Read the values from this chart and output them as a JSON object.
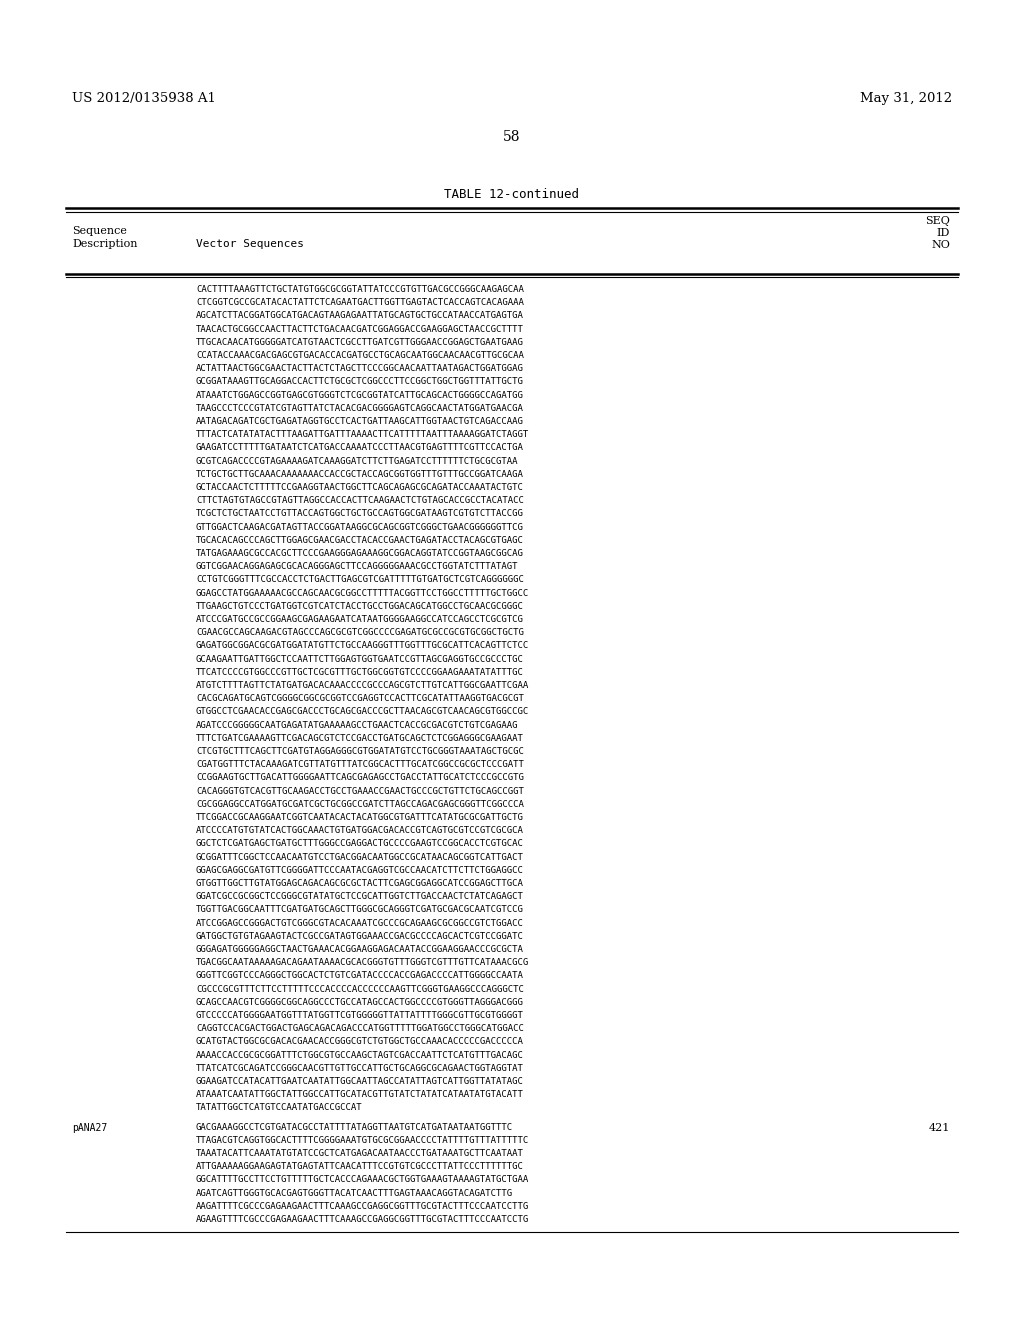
{
  "header_left": "US 2012/0135938 A1",
  "header_right": "May 31, 2012",
  "page_number": "58",
  "table_title": "TABLE 12-continued",
  "background_color": "#ffffff",
  "text_color": "#000000",
  "sequence_lines": [
    "CACTTTTAAAGTTCTGCTATGTGGCGCGGTATTATCCCGTGTTGACGCCGGGCAAGAGCAA",
    "CTCGGTCGCCGCATACACTATTCTCAGAATGACTTGGTTGAGTACTCACCAGTCACAGAAA",
    "AGCATCTTACGGATGGCATGACAGTAAGAGAATTATGCAGTGCTGCCATAACCATGAGTGA",
    "TAACACTGCGGCCAACTTACTTCTGACAACGATCGGAGGACCGAAGGAGCTAACCGCTTTT",
    "TTGCACAACATGGGGGATCATGTAACTCGCCTTGATCGTTGGGAACCGGAGCTGAATGAAG",
    "CCATACCAAACGACGAGCGTGACACCACGATGCCTGCAGCAATGGCAACAACGTTGCGCAA",
    "ACTATTAACTGGCGAACTACTTACTCTAGCTTCCCGGCAACAATTAATAGACTGGATGGAG",
    "GCGGATAAAGTTGCAGGACCACTTCTGCGCTCGGCCCTTCCGGCTGGCTGGTTTATTGCTG",
    "ATAAATCTGGAGCCGGTGAGCGTGGGTCTCGCGGTATCATTGCAGCACTGGGGCCAGATGG",
    "TAAGCCCTCCCGTATCGTAGTTATCTACACGACGGGGAGTCAGGCAACTATGGATGAACGA",
    "AATAGACAGATCGCTGAGATAGGTGCCTCACTGATTAAGCATTGGTAACTGTCAGACCAAG",
    "TTTACTCATATATACTTTAAGATTGATTTAAAACTTCATTTTTAATTTAAAAGGATCTAGGT",
    "GAAGATCCTTTTTGATAATCTCATGACCAAAATCCCTTAACGTGAGTTTTCGTTCCACTGA",
    "GCGTCAGACCCCGTAGAAAAGATCAAAGGATCTTCTTGAGATCCTTTTTTCTGCGCGTAA",
    "TCTGCTGCTTGCAAACAAAAAAACCACCGCTACCAGCGGTGGTTTGTTTGCCGGATCAAGA",
    "GCTACCAACTCTTTTTCCGAAGGTAACTGGCTTCAGCAGAGCGCAGATACCAAATACTGTC",
    "CTTCTAGTGTAGCCGTAGTTAGGCCACCACTTCAAGAACTCTGTAGCACCGCCTACATACC",
    "TCGCTCTGCTAATCCTGTTACCAGTGGCTGCTGCCAGTGGCGATAAGTCGTGTCTTACCGG",
    "GTTGGACTCAAGACGATAGTTACCGGATAAGGCGCAGCGGTCGGGCTGAACGGGGGGTTCG",
    "TGCACACAGCCCAGCTTGGAGCGAACGACCTACACCGAACTGAGATACCTACAGCGTGAGC",
    "TATGAGAAAGCGCCACGCTTCCCGAAGGGAGAAAGGCGGACAGGTATCCGGTAAGCGGCAG",
    "GGTCGGAACAGGAGAGCGCACAGGGAGCTTCCAGGGGGAAACGCCTGGTATCTTTATAGT",
    "CCTGTCGGGTTTCGCCACCTCTGACTTGAGCGTCGATTTTTGTGATGCTCGTCAGGGGGGC",
    "GGAGCCTATGGAAAAACGCCAGCAACGCGGCCTTTTTACGGTTCCTGGCCTTTTTGCTGGCC",
    "TTGAAGCTGTCCCTGATGGTCGTCATCTACCTGCCTGGACAGCATGGCCTGCAACGCGGGC",
    "ATCCCGATGCCGCCGGAAGCGAGAAGAATCATAATGGGGAAGGCCATCCAGCCTCGCGTCG",
    "CGAACGCCAGCAAGACGTAGCCCAGCGCGTCGGCCCCGAGATGCGCCGCGTGCGGCTGCTG",
    "GAGATGGCGGACGCGATGGATATGTTCTGCCAAGGGTTTGGTTTGCGCATTCACAGTTCTCC",
    "GCAAGAATTGATTGGCTCCAATTCTTGGAGTGGTGAATCCGTTAGCGAGGTGCCGCCCTGC",
    "TTCATCCCCGTGGCCCGTTGCTCGCGTTTGCTGGCGGTGTCCCCGGAAGAAATATATTTGC",
    "ATGTCTTTTAGTTCTATGATGACACAAACCCCGCCCAGCGTCTTGTCATTGGCGAATTCGAA",
    "CACGCAGATGCAGTCGGGGCGGCGCGGTCCGAGGTCCACTTCGCATATTAAGGTGACGCGT",
    "GTGGCCTCGAACACCGAGCGACCCTGCAGCGACCCGCTTAACAGCGTCAACAGCGTGGCCGC",
    "AGATCCCGGGGGCAATGAGATATGAAAAAGCCTGAACTCACCGCGACGTCTGTCGAGAAG",
    "TTTCTGATCGAAAAGTTCGACAGCGTCTCCGACCTGATGCAGCTCTCGGAGGGCGAAGAAT",
    "CTCGTGCTTTCAGCTTCGATGTAGGAGGGCGTGGATATGTCCTGCGGGTAAATAGCTGCGC",
    "CGATGGTTTCTACAAAGATCGTTATGTTTATCGGCACTTTGCATCGGCCGCGCTCCCGATT",
    "CCGGAAGTGCTTGACATTGGGGAATTCAGCGAGAGCCTGACCTATTGCATCTCCCGCCGTG",
    "CACAGGGTGTCACGTTGCAAGACCTGCCTGAAACCGAACTGCCCGCTGTTCTGCAGCCGGT",
    "CGCGGAGGCCATGGATGCGATCGCTGCGGCCGATCTTAGCCAGACGAGCGGGTTCGGCCCA",
    "TTCGGACCGCAAGGAATCGGTCAATACACTACATGGCGTGATTTCATATGCGCGATTGCTG",
    "ATCCCCATGTGTATCACTGGCAAACTGTGATGGACGACACCGTCAGTGCGTCCGTCGCGCA",
    "GGCTCTCGATGAGCTGATGCTTTGGGCCGAGGACTGCCCCGAAGTCCGGCACCTCGTGCAC",
    "GCGGATTTCGGCTCCAACAATGTCCTGACGGACAATGGCCGCATAACAGCGGTCATTGACT",
    "GGAGCGAGGCGATGTTCGGGGATTCCCAATACGAGGTCGCCAACATCTTCTTCTGGAGGCC",
    "GTGGTTGGCTTGTATGGAGCAGACAGCGCGCTACTTCGAGCGGAGGCATCCGGAGCTTGCA",
    "GGATCGCCGCGGCTCCGGGCGTATATGCTCCGCATTGGTCTTGACCAACTCTATCAGAGCT",
    "TGGTTGACGGCAATTTCGATGATGCAGCTTGGGCGCAGGGTCGATGCGACGCAATCGTCCG",
    "ATCCGGAGCCGGGACTGTCGGGCGTACACAAATCGCCCGCAGAAGCGCGGCCGTCTGGACC",
    "GATGGCTGTGTAGAAGTACTCGCCGATAGTGGAAACCGACGCCCCAGCACTCGTCCGGATC",
    "GGGAGATGGGGGAGGCTAACTGAAACACGGAAGGAGACAATACCGGAAGGAACCCGCGCTA",
    "TGACGGCAATAAAAAGACAGAATAAAACGCACGGGTGTTTGGGTCGTTTGTTCATAAACGCG",
    "GGGTTCGGTCCCAGGGCTGGCACTCTGTCGATACCCCACCGAGACCCCATTGGGGCCAATA",
    "CGCCCGCGTTTCTTCCTTTTTCCCACCCCACCCCCCAAGTTCGGGTGAAGGCCCAGGGCTC",
    "GCAGCCAACGTCGGGGCGGCAGGCCCTGCCATAGCCACTGGCCCCGTGGGTTAGGGACGGG",
    "GTCCCCCATGGGGAATGGTTTATGGTTCGTGGGGGTTATTATTTTGGGCGTTGCGTGGGGT",
    "CAGGTCCACGACTGGACTGAGCAGACAGACCCATGGTTTTTGGATGGCCTGGGCATGGACC",
    "GCATGTACTGGCGCGACACGAACACCGGGCGTCTGTGGCTGCCAAACACCCCCGACCCCCA",
    "AAAACCACCGCGCGGATTTCTGGCGTGCCAAGCTAGTCGACCAATTCTCATGTTTGACAGC",
    "TTATCATCGCAGATCCGGGCAACGTTGTTGCCATTGCTGCAGGCGCAGAACTGGTAGGTAT",
    "GGAAGATCCATACATTGAATCAATATTGGCAATTAGCCATATTAGTCATTGGTTATATAGC",
    "ATAAATCAATATTGGCTATTGGCCATTGCATACGTTGTATCTATATCATAATATGTACATT",
    "TATATTGGCTCATGTCCAATATGACCGCCAT"
  ],
  "pana27_label": "pANA27",
  "pana27_lines": [
    "GACGAAAGGCCTCGTGATACGCCTATTTTATAGGTTAATGTCATGATAATAATGGTTTC",
    "TTAGACGTCAGGTGGCACTTTTCGGGGAAATGTGCGCGGAACCCCTATTTTGTTTATTTTTC",
    "TAAATACATTCAAATATGTATCCGCTCATGAGACAATAACCCTGATAAATGCTTCAATAAT",
    "ATTGAAAAAGGAAGAGTATGAGTATTCAACATTTCCGTGTCGCCCTTATTCCCTTTTTTGC",
    "GGCATTTTGCCTTCCTGTTTTTGCTCACCCAGAAACGCTGGTGAAAGTAAAAGTATGCTGAA",
    "AGATCAGTTGGGTGCACGAGTGGGTTACATCAACTTTGAGTAAACAGGTACAGATCTTG",
    "AAGATTTTCGCCCGAGAAGAACTTTCAAAGCCGAGGCGGTTTGCGTACTTTCCCAATCCTTG",
    "AGAAGTTTTCGCCCGAGAAGAACTTTCAAAGCCGAGGCGGTTTGCGTACTTTCCCAATCCTG"
  ],
  "pana27_seq_id": "421"
}
